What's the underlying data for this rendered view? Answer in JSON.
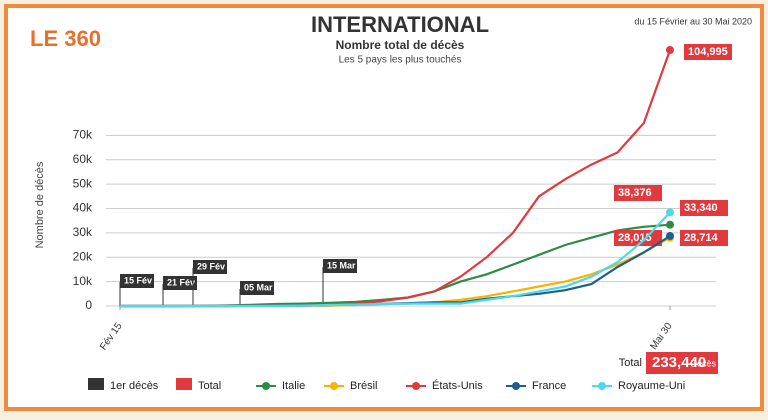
{
  "brand": "LE 360",
  "chart_data": {
    "type": "line",
    "title": "INTERNATIONAL",
    "subtitle": "Nombre total de décès",
    "caption": "Les 5 pays les plus touchés",
    "period": "du 15 Février au 30 Mai 2020",
    "y_label": "Nombre de décès",
    "x": [
      "2020-02-15",
      "2020-02-20",
      "2020-02-25",
      "2020-03-01",
      "2020-03-06",
      "2020-03-11",
      "2020-03-16",
      "2020-03-21",
      "2020-03-26",
      "2020-03-31",
      "2020-04-05",
      "2020-04-10",
      "2020-04-15",
      "2020-04-20",
      "2020-04-25",
      "2020-04-30",
      "2020-05-05",
      "2020-05-10",
      "2020-05-15",
      "2020-05-20",
      "2020-05-25",
      "2020-05-30"
    ],
    "xlim": [
      "2020-02-15",
      "2020-05-30"
    ],
    "xticks": [
      {
        "value": "2020-02-15",
        "label": "Fév 15"
      },
      {
        "value": "2020-05-30",
        "label": "Mai 30"
      }
    ],
    "ylim": [
      0,
      105000
    ],
    "yticks": [
      0,
      {
        "value": 10000,
        "label": "10k"
      },
      {
        "value": 20000,
        "label": "20k"
      },
      {
        "value": 30000,
        "label": "30k"
      },
      {
        "value": 40000,
        "label": "40k"
      },
      {
        "value": 50000,
        "label": "50k"
      },
      {
        "value": 60000,
        "label": "60k"
      },
      {
        "value": 70000,
        "label": "70k"
      }
    ],
    "grid": true,
    "first_deaths": [
      "15 Fév",
      "21 Fév",
      "29 Fév",
      "05 Mar",
      "15 Mar"
    ],
    "series": [
      {
        "name": "Italie",
        "color": "#2e8b47",
        "values": [
          0,
          0,
          10,
          30,
          200,
          500,
          800,
          1000,
          1300,
          1700,
          2500,
          3500,
          6000,
          10000,
          13000,
          17000,
          21000,
          25000,
          28000,
          31000,
          32500,
          33340
        ],
        "value_labels": [
          null,
          null,
          null,
          null,
          null,
          null,
          null,
          null,
          null,
          null,
          null,
          null,
          null,
          null,
          null,
          null,
          null,
          null,
          null,
          null,
          null,
          "33,340"
        ]
      },
      {
        "name": "Brésil",
        "color": "#f5b400",
        "values": [
          0,
          0,
          0,
          0,
          0,
          0,
          0,
          50,
          150,
          400,
          800,
          1000,
          1500,
          2500,
          4000,
          6000,
          8000,
          10000,
          13000,
          17000,
          22000,
          28015
        ],
        "value_labels": [
          null,
          null,
          null,
          null,
          null,
          null,
          null,
          null,
          null,
          null,
          null,
          null,
          null,
          null,
          null,
          null,
          null,
          null,
          null,
          null,
          null,
          "28,015"
        ]
      },
      {
        "name": "États-Unis",
        "color": "#e03a3e",
        "values": [
          0,
          0,
          0,
          0,
          10,
          30,
          60,
          150,
          400,
          1000,
          2000,
          3500,
          6000,
          12000,
          20000,
          30000,
          45000,
          52000,
          58000,
          63000,
          75000,
          104995
        ],
        "value_labels": [
          null,
          null,
          null,
          null,
          null,
          null,
          null,
          null,
          null,
          null,
          null,
          null,
          null,
          null,
          null,
          null,
          null,
          null,
          null,
          null,
          null,
          "104,995"
        ]
      },
      {
        "name": "France",
        "color": "#1f5f8b",
        "values": [
          0,
          0,
          1,
          2,
          5,
          30,
          100,
          200,
          400,
          600,
          900,
          1200,
          1500,
          1500,
          3000,
          4000,
          5000,
          6500,
          9000,
          16000,
          22000,
          28714
        ],
        "value_labels": [
          null,
          null,
          null,
          null,
          null,
          null,
          null,
          null,
          null,
          null,
          null,
          null,
          null,
          null,
          null,
          null,
          null,
          null,
          null,
          null,
          null,
          "28,714"
        ]
      },
      {
        "name": "Royaume-Uni",
        "color": "#4fd8eb",
        "values": [
          0,
          0,
          0,
          0,
          0,
          10,
          50,
          150,
          400,
          600,
          800,
          1000,
          1000,
          1000,
          2500,
          4000,
          6000,
          8000,
          12000,
          18000,
          27000,
          38376
        ],
        "value_labels": [
          null,
          null,
          null,
          null,
          null,
          null,
          null,
          null,
          null,
          null,
          null,
          null,
          null,
          null,
          null,
          null,
          null,
          null,
          null,
          null,
          null,
          "38,376"
        ]
      }
    ],
    "total": {
      "label": "Total",
      "value_label": "233,440",
      "unit": "Décès"
    },
    "legend_extra": [
      "1er décès",
      "Total"
    ]
  }
}
